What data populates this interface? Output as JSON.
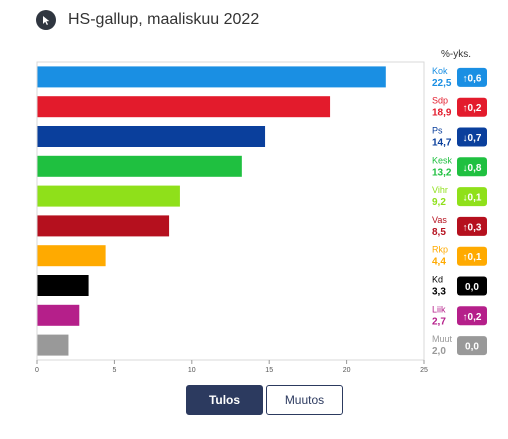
{
  "header": {
    "title": "HS-gallup, maaliskuu 2022",
    "icon": "cursor-icon",
    "change_header": "%-yks."
  },
  "toggles": {
    "result_label": "Tulos",
    "change_label": "Muutos",
    "active": "Tulos"
  },
  "chart_data": {
    "type": "bar",
    "orientation": "horizontal",
    "title": "HS-gallup, maaliskuu 2022",
    "xlim": [
      0,
      25
    ],
    "xticks": [
      0,
      5,
      10,
      15,
      20,
      25
    ],
    "grid": false,
    "parties": [
      {
        "label": "Kok",
        "value": "22,5",
        "v": 22.5,
        "change": "↑0,6",
        "color": "#1a8fe3"
      },
      {
        "label": "Sdp",
        "value": "18,9",
        "v": 18.9,
        "change": "↑0,2",
        "color": "#e31b2c"
      },
      {
        "label": "Ps",
        "value": "14,7",
        "v": 14.7,
        "change": "↓0,7",
        "color": "#0a3f9c"
      },
      {
        "label": "Kesk",
        "value": "13,2",
        "v": 13.2,
        "change": "↓0,8",
        "color": "#1fc040"
      },
      {
        "label": "Vihr",
        "value": "9,2",
        "v": 9.2,
        "change": "↓0,1",
        "color": "#8fe01a"
      },
      {
        "label": "Vas",
        "value": "8,5",
        "v": 8.5,
        "change": "↑0,3",
        "color": "#b5101e"
      },
      {
        "label": "Rkp",
        "value": "4,4",
        "v": 4.4,
        "change": "↑0,1",
        "color": "#ffaa00"
      },
      {
        "label": "Kd",
        "value": "3,3",
        "v": 3.3,
        "change": "0,0",
        "color": "#000000"
      },
      {
        "label": "Liik",
        "value": "2,7",
        "v": 2.7,
        "change": "↑0,2",
        "color": "#b51f8a"
      },
      {
        "label": "Muut",
        "value": "2,0",
        "v": 2.0,
        "change": "0,0",
        "color": "#999999"
      }
    ]
  }
}
